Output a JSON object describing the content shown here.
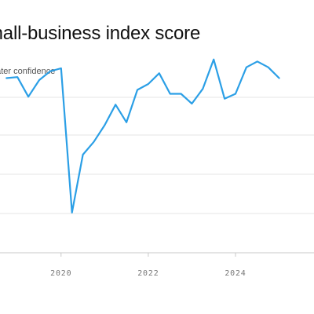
{
  "chart_data": {
    "type": "line",
    "title": "mall-business index score",
    "subtitle": "eater confidence",
    "xlabel": "",
    "ylabel": "",
    "xlim": [
      2018.6,
      2025.8
    ],
    "ylim": [
      86,
      106
    ],
    "grid": true,
    "x_ticks": [
      2020,
      2022,
      2024
    ],
    "x_tick_labels": [
      "2020",
      "2022",
      "2024"
    ],
    "colors": {
      "line": "#2b9fe6",
      "grid": "#e6e6e6",
      "axis": "#c8c8c8"
    },
    "series": [
      {
        "x": [
          2018.75,
          2019.0,
          2019.25,
          2019.5,
          2019.75,
          2020.0,
          2020.25,
          2020.5,
          2020.75,
          2021.0,
          2021.25,
          2021.5,
          2021.75,
          2022.0,
          2022.25,
          2022.5,
          2022.75,
          2023.0,
          2023.25,
          2023.5,
          2023.75,
          2024.0,
          2024.25,
          2024.5,
          2024.75,
          2025.0
        ],
        "values": [
          103.8,
          103.9,
          101.9,
          103.6,
          104.5,
          104.8,
          90.1,
          96.0,
          97.3,
          99.0,
          101.1,
          99.3,
          102.6,
          103.2,
          104.3,
          102.2,
          102.2,
          101.2,
          102.7,
          105.7,
          101.7,
          102.2,
          104.9,
          105.5,
          104.9,
          103.8
        ]
      }
    ]
  }
}
